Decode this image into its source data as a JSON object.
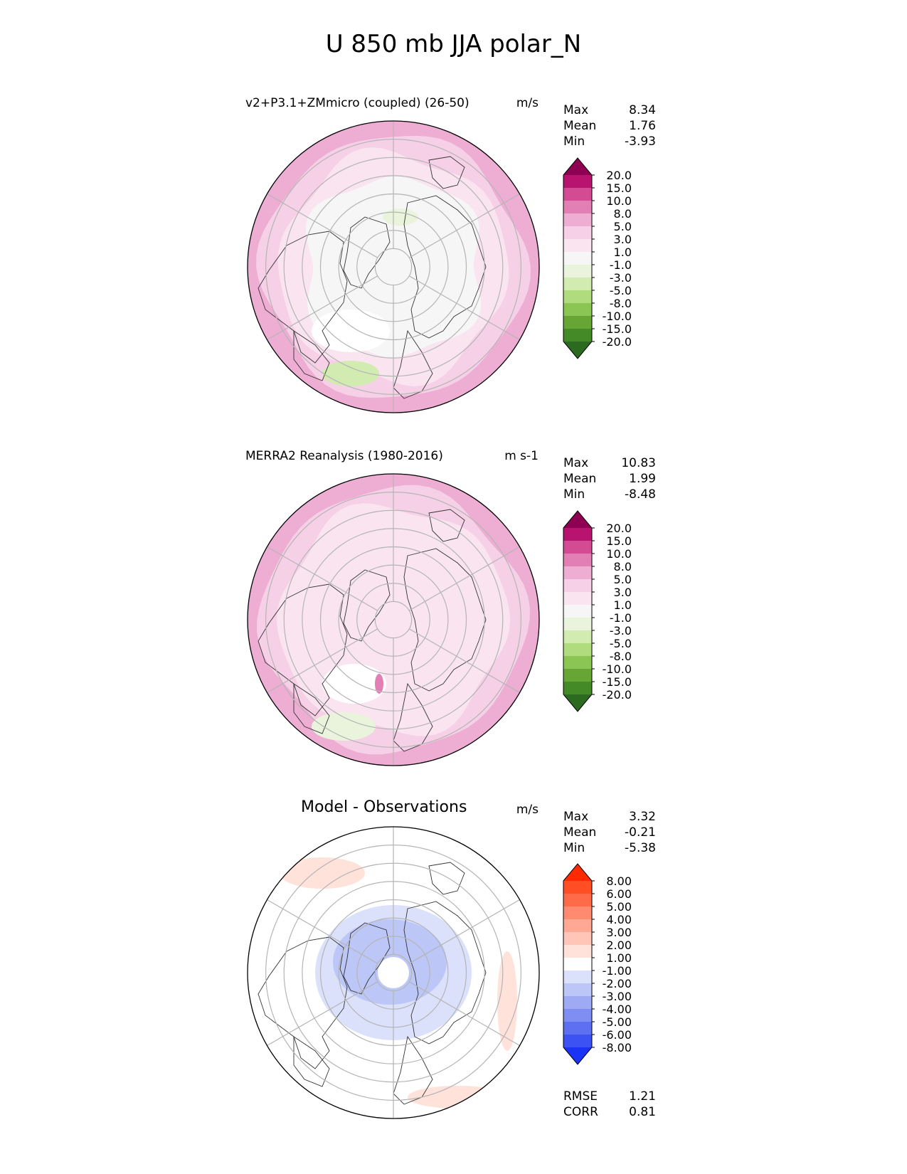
{
  "title": "U 850 mb JJA polar_N",
  "panels": [
    {
      "title": "v2+P3.1+ZMmicro (coupled) (26-50)",
      "units": "m/s",
      "stats": [
        {
          "label": "Max",
          "value": "8.34"
        },
        {
          "label": "Mean",
          "value": "1.76"
        },
        {
          "label": "Min",
          "value": "-3.93"
        }
      ],
      "colorbar": {
        "levels": [
          "20.0",
          "15.0",
          "10.0",
          "8.0",
          "5.0",
          "3.0",
          "1.0",
          "-1.0",
          "-3.0",
          "-5.0",
          "-8.0",
          "-10.0",
          "-15.0",
          "-20.0"
        ],
        "colors": [
          "#8e0152",
          "#b8136f",
          "#d24b93",
          "#e280b6",
          "#eeaed4",
          "#f6d0e7",
          "#f9e4f0",
          "#f6f6f6",
          "#eaf4dc",
          "#d2ebb0",
          "#b1dc7e",
          "#8bc654",
          "#67a634",
          "#448a26",
          "#2b6a1f"
        ]
      }
    },
    {
      "title": "MERRA2 Reanalysis (1980-2016)",
      "units": "m s-1",
      "stats": [
        {
          "label": "Max",
          "value": "10.83"
        },
        {
          "label": "Mean",
          "value": "1.99"
        },
        {
          "label": "Min",
          "value": "-8.48"
        }
      ],
      "colorbar": {
        "levels": [
          "20.0",
          "15.0",
          "10.0",
          "8.0",
          "5.0",
          "3.0",
          "1.0",
          "-1.0",
          "-3.0",
          "-5.0",
          "-8.0",
          "-10.0",
          "-15.0",
          "-20.0"
        ],
        "colors": [
          "#8e0152",
          "#b8136f",
          "#d24b93",
          "#e280b6",
          "#eeaed4",
          "#f6d0e7",
          "#f9e4f0",
          "#f6f6f6",
          "#eaf4dc",
          "#d2ebb0",
          "#b1dc7e",
          "#8bc654",
          "#67a634",
          "#448a26",
          "#2b6a1f"
        ]
      }
    },
    {
      "title": "Model - Observations",
      "units": "m/s",
      "stats": [
        {
          "label": "Max",
          "value": "3.32"
        },
        {
          "label": "Mean",
          "value": "-0.21"
        },
        {
          "label": "Min",
          "value": "-5.38"
        }
      ],
      "colorbar": {
        "levels": [
          "8.00",
          "6.00",
          "5.00",
          "4.00",
          "3.00",
          "2.00",
          "1.00",
          "-1.00",
          "-2.00",
          "-3.00",
          "-4.00",
          "-5.00",
          "-6.00",
          "-8.00"
        ],
        "colors": [
          "#ff2a00",
          "#ff4d24",
          "#ff6a48",
          "#ff8a70",
          "#ffa894",
          "#ffc6b8",
          "#ffe2da",
          "#ffffff",
          "#dbe1fb",
          "#bcc6f7",
          "#9eaaf4",
          "#7e8ef2",
          "#5e70f2",
          "#3d52f3",
          "#1a33f5"
        ]
      },
      "metrics": [
        {
          "label": "RMSE",
          "value": "1.21"
        },
        {
          "label": "CORR",
          "value": "0.81"
        }
      ]
    }
  ],
  "chart_data": {
    "type": "heatmap",
    "title": "U 850 mb JJA polar_N",
    "projection": "north polar stereographic",
    "grid": true
  }
}
